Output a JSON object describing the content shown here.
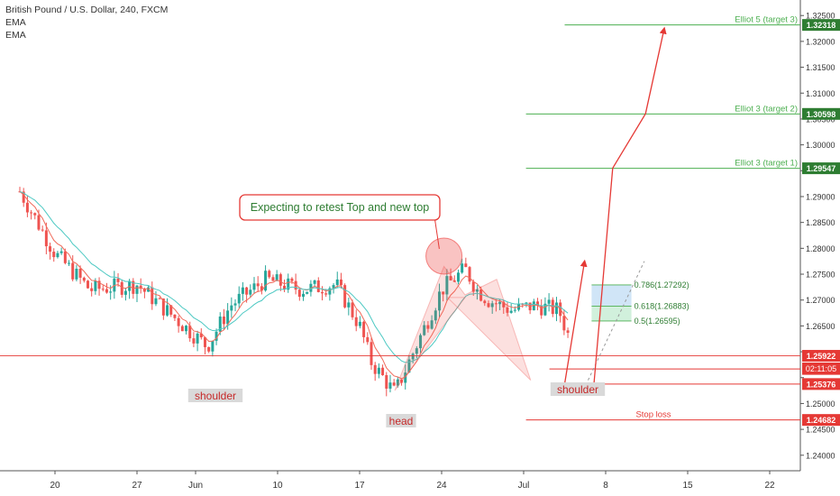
{
  "header": {
    "title": "British Pound / U.S. Dollar, 240, FXCM",
    "indicators": [
      "EMA",
      "EMA"
    ]
  },
  "chart_data": {
    "type": "candlestick",
    "ylim": [
      1.237,
      1.328
    ],
    "xlim_days": [
      -2,
      42
    ],
    "y_ticks": [
      1.24,
      1.245,
      1.25,
      1.255,
      1.26,
      1.265,
      1.27,
      1.275,
      1.28,
      1.285,
      1.29,
      1.295,
      1.3,
      1.305,
      1.31,
      1.315,
      1.32,
      1.325
    ],
    "y_tick_labels": [
      "1.24000",
      "1.24500",
      "1.25000",
      "",
      "",
      "1.26500",
      "1.27000",
      "1.27500",
      "1.28000",
      "1.28500",
      "1.29000",
      "",
      "1.30000",
      "1.30500",
      "1.31000",
      "1.31500",
      "1.32000",
      "1.32500"
    ],
    "x_ticks": [
      {
        "day": 1,
        "label": "20"
      },
      {
        "day": 8,
        "label": "27"
      },
      {
        "day": 13,
        "label": "Jun"
      },
      {
        "day": 20,
        "label": "10"
      },
      {
        "day": 27,
        "label": "17"
      },
      {
        "day": 34,
        "label": "24"
      },
      {
        "day": 41,
        "label": "Jul"
      },
      {
        "day": 48,
        "label": "8"
      },
      {
        "day": 55,
        "label": "15"
      },
      {
        "day": 62,
        "label": "22"
      }
    ],
    "price_path": [
      [
        -2,
        1.291
      ],
      [
        1,
        1.279
      ],
      [
        4,
        1.272
      ],
      [
        8,
        1.273
      ],
      [
        12,
        1.265
      ],
      [
        14,
        1.261
      ],
      [
        16,
        1.269
      ],
      [
        19,
        1.274
      ],
      [
        22,
        1.272
      ],
      [
        25,
        1.273
      ],
      [
        27,
        1.265
      ],
      [
        28,
        1.258
      ],
      [
        30,
        1.252
      ],
      [
        32,
        1.262
      ],
      [
        34,
        1.272
      ],
      [
        36,
        1.276
      ],
      [
        37,
        1.272
      ],
      [
        38,
        1.27
      ],
      [
        40,
        1.268
      ],
      [
        42,
        1.269
      ],
      [
        44,
        1.268
      ],
      [
        45,
        1.262
      ]
    ],
    "levels": [
      {
        "label": "Elliot 5 (target 3)",
        "value": 1.32318,
        "value_label": "1.32318",
        "color": "#2e7d32"
      },
      {
        "label": "Elliot 3 (target 2)",
        "value": 1.30598,
        "value_label": "1.30598",
        "color": "#2e7d32"
      },
      {
        "label": "Elliot 3 (target 1)",
        "value": 1.29547,
        "value_label": "1.29547",
        "color": "#2e7d32"
      },
      {
        "label": "",
        "value": 1.25922,
        "value_label": "1.25922",
        "color": "#e53935"
      },
      {
        "label": "",
        "value": 1.25668,
        "value_label": "1.25668",
        "color": "#e53935"
      },
      {
        "label": "",
        "value": 1.25376,
        "value_label": "1.25376",
        "color": "#e53935"
      },
      {
        "label": "Stop loss",
        "value": 1.24682,
        "value_label": "1.24682",
        "color": "#e53935"
      }
    ],
    "time_label": "02:11:05",
    "fibonacci": [
      {
        "label": "0.786(1.27292)",
        "value": 1.27292
      },
      {
        "label": "0.618(1.26883)",
        "value": 1.26883
      },
      {
        "label": "0.5(1.26595)",
        "value": 1.26595
      }
    ],
    "annotations": {
      "callout": "Expecting to retest Top and new top",
      "shoulder_left": "shoulder",
      "head": "head",
      "shoulder_right": "shoulder"
    },
    "colors": {
      "up": "#26a69a",
      "down": "#ef5350",
      "ema_fast": "#f06a5a",
      "ema_slow": "#4dc9c3",
      "target": "#4caf50",
      "red": "#e53935"
    }
  }
}
